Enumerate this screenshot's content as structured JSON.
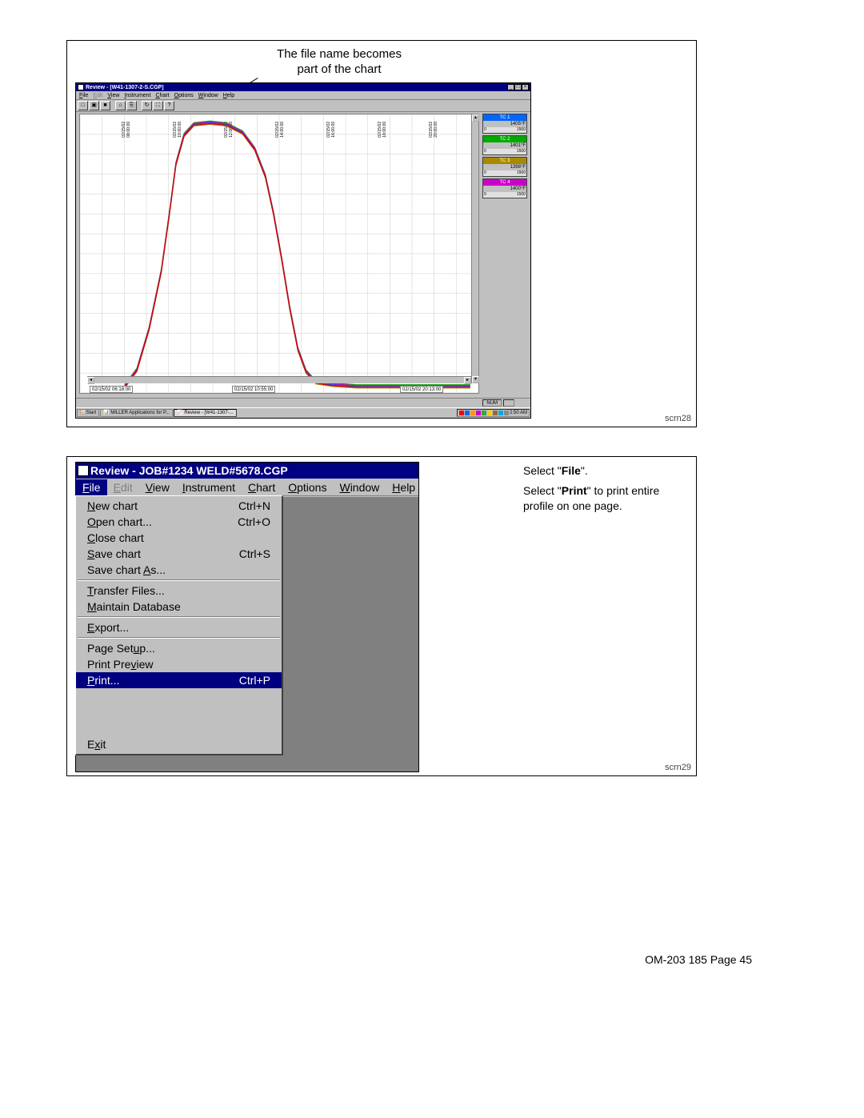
{
  "callout": {
    "line1": "The file name becomes",
    "line2": "part of the chart"
  },
  "fig1": {
    "scrn_label": "scrn28",
    "window_title": "Review - [W41-1307-2-S.CGP]",
    "menus": [
      "File",
      "Edit",
      "View",
      "Instrument",
      "Chart",
      "Options",
      "Window",
      "Help"
    ],
    "toolbar_icons": [
      "□",
      "▣",
      "■",
      "|",
      "⌂",
      "⎘",
      "|",
      "↻",
      "⛶",
      "?"
    ],
    "time_labels": [
      "02/15/02\n08:00:00",
      "02/15/02\n10:00:00",
      "02/15/02\n12:00:00",
      "02/15/02\n14:00:00",
      "02/15/02\n16:00:00",
      "02/15/02\n18:00:00",
      "02/15/02\n20:00:00"
    ],
    "axis_boxes": [
      "02/15/02 06:18:00",
      "02/15/02 10:55:00",
      "02/15/02 20:13:00"
    ],
    "statusbar": {
      "num": "NUM"
    },
    "taskbar": {
      "start": "Start",
      "items": [
        "MILLER Applications for P...",
        "Review - [W41-1307-..."
      ],
      "time": "2:50 AM"
    },
    "tray_colors": [
      "#ff0000",
      "#0066ff",
      "#ff9900",
      "#cc00cc",
      "#33aa33",
      "#ffcc00",
      "#996633",
      "#00aadd",
      "#888888"
    ],
    "legend": [
      {
        "name": "TC 1",
        "temp": "1405°F",
        "head_color": "#0066ff",
        "scale_lo": "0",
        "scale_hi": "1500"
      },
      {
        "name": "TC 2",
        "temp": "1401°F",
        "head_color": "#00aa00",
        "scale_lo": "0",
        "scale_hi": "1500"
      },
      {
        "name": "TC 3",
        "temp": "1398°F",
        "head_color": "#aa8800",
        "scale_lo": "0",
        "scale_hi": "1500"
      },
      {
        "name": "TC 4",
        "temp": "1400°F",
        "head_color": "#cc00cc",
        "scale_lo": "0",
        "scale_hi": "1500"
      }
    ],
    "chart": {
      "type": "line",
      "background_color": "#ffffff",
      "grid_color": "#cccccc",
      "xlim": [
        0,
        490
      ],
      "ylim": [
        0,
        1500
      ],
      "grid_x_count": 18,
      "grid_y_count": 14,
      "line_colors": [
        "#0066ff",
        "#00aa00",
        "#aa8800",
        "#cc00cc",
        "#cc0000"
      ],
      "line_width": 1.2,
      "profile_points": [
        [
          55,
          330
        ],
        [
          70,
          310
        ],
        [
          85,
          260
        ],
        [
          100,
          190
        ],
        [
          110,
          120
        ],
        [
          118,
          60
        ],
        [
          128,
          25
        ],
        [
          140,
          12
        ],
        [
          160,
          10
        ],
        [
          180,
          12
        ],
        [
          200,
          22
        ],
        [
          215,
          42
        ],
        [
          228,
          75
        ],
        [
          238,
          120
        ],
        [
          248,
          175
        ],
        [
          258,
          235
        ],
        [
          268,
          285
        ],
        [
          278,
          312
        ],
        [
          290,
          325
        ],
        [
          310,
          328
        ],
        [
          340,
          330
        ],
        [
          400,
          330
        ],
        [
          480,
          330
        ]
      ],
      "jitter_offsets": [
        0,
        -2,
        2,
        -1,
        1
      ]
    }
  },
  "fig2": {
    "scrn_label": "scrn29",
    "window_title": "Review - JOB#1234 WELD#5678.CGP",
    "menus": [
      {
        "label": "File",
        "u": "F",
        "active": true,
        "disabled": false
      },
      {
        "label": "Edit",
        "u": "E",
        "active": false,
        "disabled": true
      },
      {
        "label": "View",
        "u": "V",
        "active": false,
        "disabled": false
      },
      {
        "label": "Instrument",
        "u": "I",
        "active": false,
        "disabled": false
      },
      {
        "label": "Chart",
        "u": "C",
        "active": false,
        "disabled": false
      },
      {
        "label": "Options",
        "u": "O",
        "active": false,
        "disabled": false
      },
      {
        "label": "Window",
        "u": "W",
        "active": false,
        "disabled": false
      },
      {
        "label": "Help",
        "u": "H",
        "active": false,
        "disabled": false
      }
    ],
    "dropdown": [
      {
        "type": "item",
        "label": "New chart",
        "u": "N",
        "shortcut": "Ctrl+N"
      },
      {
        "type": "item",
        "label": "Open chart...",
        "u": "O",
        "shortcut": "Ctrl+O"
      },
      {
        "type": "item",
        "label": "Close chart",
        "u": "C",
        "shortcut": ""
      },
      {
        "type": "item",
        "label": "Save chart",
        "u": "S",
        "shortcut": "Ctrl+S"
      },
      {
        "type": "item",
        "label": "Save chart As...",
        "u": "A",
        "shortcut": ""
      },
      {
        "type": "sep"
      },
      {
        "type": "item",
        "label": "Transfer Files...",
        "u": "T",
        "shortcut": ""
      },
      {
        "type": "item",
        "label": "Maintain Database",
        "u": "M",
        "shortcut": ""
      },
      {
        "type": "sep"
      },
      {
        "type": "item",
        "label": "Export...",
        "u": "E",
        "shortcut": ""
      },
      {
        "type": "sep"
      },
      {
        "type": "item",
        "label": "Page Setup...",
        "u": "u",
        "shortcut": ""
      },
      {
        "type": "item",
        "label": "Print Preview",
        "u": "v",
        "shortcut": ""
      },
      {
        "type": "item",
        "label": "Print...",
        "u": "P",
        "shortcut": "Ctrl+P",
        "highlight": true
      },
      {
        "type": "spacer"
      },
      {
        "type": "item",
        "label": "Exit",
        "u": "x",
        "shortcut": ""
      }
    ],
    "instructions": {
      "t1a": "Select \"",
      "t1b": "File",
      "t1c": "\".",
      "t2a": "Select \"",
      "t2b": "Print",
      "t2c": "\" to print entire profile on one page."
    }
  },
  "footer": "OM-203 185 Page 45"
}
